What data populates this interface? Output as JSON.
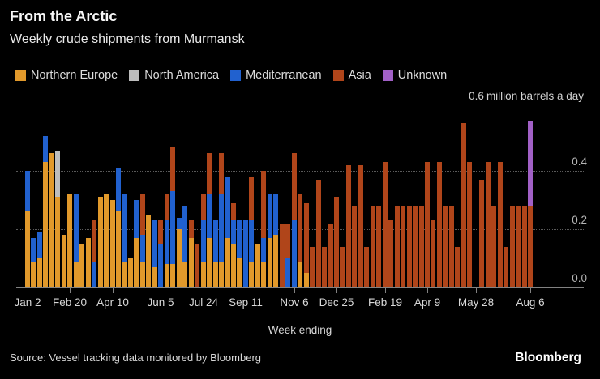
{
  "header": {
    "title": "From the Arctic",
    "subtitle": "Weekly crude shipments from Murmansk"
  },
  "annotation": {
    "value": "0.6",
    "unit": "million barrels a day"
  },
  "footer": {
    "source": "Source: Vessel tracking data monitored by Bloomberg",
    "logo": "Bloomberg"
  },
  "colors": {
    "background": "#000000",
    "northern_europe": "#E1992B",
    "north_america": "#BDBDBD",
    "mediterranean": "#2161CF",
    "asia": "#B0451A",
    "unknown": "#A160C6",
    "gridline": "#5A5A5A",
    "axis": "#828282"
  },
  "chart_data": {
    "type": "bar",
    "stacked": true,
    "title": "From the Arctic",
    "subtitle": "Weekly crude shipments from Murmansk",
    "xlabel": "Week ending",
    "ylabel": "million barrels a day",
    "ylim": [
      0,
      0.6
    ],
    "grid": "horizontal-dotted",
    "legend_position": "top",
    "y_ticks": [
      {
        "label": "0.4",
        "value": 0.4
      },
      {
        "label": "0.2",
        "value": 0.2
      },
      {
        "label": "0.0",
        "value": 0.0
      }
    ],
    "x_ticks": [
      {
        "label": "Jan 2",
        "index": 0
      },
      {
        "label": "Feb 20",
        "index": 7
      },
      {
        "label": "Apr 10",
        "index": 14
      },
      {
        "label": "Jun 5",
        "index": 22
      },
      {
        "label": "Jul 24",
        "index": 29
      },
      {
        "label": "Sep 11",
        "index": 36
      },
      {
        "label": "Nov 6",
        "index": 44
      },
      {
        "label": "Dec 25",
        "index": 51
      },
      {
        "label": "Feb 19",
        "index": 59
      },
      {
        "label": "Apr 9",
        "index": 66
      },
      {
        "label": "May 28",
        "index": 74
      },
      {
        "label": "Aug 6",
        "index": 83
      }
    ],
    "series": [
      {
        "name": "Northern Europe",
        "color": "#E1992B"
      },
      {
        "name": "North America",
        "color": "#BDBDBD"
      },
      {
        "name": "Mediterranean",
        "color": "#2161CF"
      },
      {
        "name": "Asia",
        "color": "#B0451A"
      },
      {
        "name": "Unknown",
        "color": "#A160C6"
      }
    ],
    "bars_note": "each bar = one week; values per series order [Northern Europe, North America, Mediterranean, Asia, Unknown] in million barrels a day",
    "bars": [
      [
        0.26,
        0,
        0.14,
        0,
        0
      ],
      [
        0.09,
        0,
        0.08,
        0,
        0
      ],
      [
        0.1,
        0,
        0.09,
        0,
        0
      ],
      [
        0.43,
        0,
        0.09,
        0,
        0
      ],
      [
        0.46,
        0,
        0,
        0,
        0
      ],
      [
        0.31,
        0.16,
        0,
        0,
        0
      ],
      [
        0.18,
        0,
        0,
        0,
        0
      ],
      [
        0.32,
        0,
        0,
        0,
        0
      ],
      [
        0.09,
        0,
        0.23,
        0,
        0
      ],
      [
        0.15,
        0,
        0,
        0,
        0
      ],
      [
        0.17,
        0,
        0,
        0,
        0
      ],
      [
        0,
        0,
        0.09,
        0.14,
        0
      ],
      [
        0.31,
        0,
        0,
        0,
        0
      ],
      [
        0.32,
        0,
        0,
        0,
        0
      ],
      [
        0.3,
        0,
        0,
        0,
        0
      ],
      [
        0.26,
        0,
        0.15,
        0,
        0
      ],
      [
        0.09,
        0,
        0.23,
        0,
        0
      ],
      [
        0.1,
        0,
        0,
        0,
        0
      ],
      [
        0.17,
        0,
        0.13,
        0,
        0
      ],
      [
        0.09,
        0,
        0.09,
        0.14,
        0
      ],
      [
        0.25,
        0,
        0,
        0,
        0
      ],
      [
        0.07,
        0,
        0.16,
        0,
        0
      ],
      [
        0,
        0,
        0.15,
        0.08,
        0
      ],
      [
        0.08,
        0,
        0.15,
        0.09,
        0
      ],
      [
        0.08,
        0,
        0.25,
        0.15,
        0
      ],
      [
        0.2,
        0,
        0.04,
        0,
        0
      ],
      [
        0.09,
        0,
        0.19,
        0,
        0
      ],
      [
        0.17,
        0,
        0,
        0.06,
        0
      ],
      [
        0,
        0,
        0,
        0.15,
        0
      ],
      [
        0.09,
        0,
        0.14,
        0.09,
        0
      ],
      [
        0.17,
        0,
        0.15,
        0.14,
        0
      ],
      [
        0.09,
        0,
        0.14,
        0,
        0
      ],
      [
        0.09,
        0,
        0.23,
        0.14,
        0
      ],
      [
        0.17,
        0,
        0.21,
        0,
        0
      ],
      [
        0.15,
        0,
        0.08,
        0.06,
        0
      ],
      [
        0.1,
        0,
        0.13,
        0,
        0
      ],
      [
        0,
        0,
        0.23,
        0,
        0
      ],
      [
        0.09,
        0,
        0.14,
        0.15,
        0
      ],
      [
        0.15,
        0,
        0,
        0,
        0
      ],
      [
        0.09,
        0,
        0.08,
        0.23,
        0
      ],
      [
        0.17,
        0,
        0.15,
        0,
        0
      ],
      [
        0.18,
        0,
        0.14,
        0,
        0
      ],
      [
        0,
        0,
        0,
        0.22,
        0
      ],
      [
        0,
        0,
        0.1,
        0.12,
        0
      ],
      [
        0,
        0,
        0.23,
        0.23,
        0
      ],
      [
        0.09,
        0,
        0,
        0.23,
        0
      ],
      [
        0.05,
        0,
        0,
        0.24,
        0
      ],
      [
        0,
        0,
        0,
        0.14,
        0
      ],
      [
        0,
        0,
        0,
        0.37,
        0
      ],
      [
        0,
        0,
        0,
        0.14,
        0
      ],
      [
        0,
        0,
        0,
        0.22,
        0
      ],
      [
        0,
        0,
        0,
        0.31,
        0
      ],
      [
        0,
        0,
        0,
        0.14,
        0
      ],
      [
        0,
        0,
        0,
        0.42,
        0
      ],
      [
        0,
        0,
        0,
        0.28,
        0
      ],
      [
        0,
        0,
        0,
        0.42,
        0
      ],
      [
        0,
        0,
        0,
        0.14,
        0
      ],
      [
        0,
        0,
        0,
        0.28,
        0
      ],
      [
        0,
        0,
        0,
        0.28,
        0
      ],
      [
        0,
        0,
        0,
        0.43,
        0
      ],
      [
        0,
        0,
        0,
        0.23,
        0
      ],
      [
        0,
        0,
        0,
        0.28,
        0
      ],
      [
        0,
        0,
        0,
        0.28,
        0
      ],
      [
        0,
        0,
        0,
        0.28,
        0
      ],
      [
        0,
        0,
        0,
        0.28,
        0
      ],
      [
        0,
        0,
        0,
        0.28,
        0
      ],
      [
        0,
        0,
        0,
        0.43,
        0
      ],
      [
        0,
        0,
        0,
        0.23,
        0
      ],
      [
        0,
        0,
        0,
        0.43,
        0
      ],
      [
        0,
        0,
        0,
        0.28,
        0
      ],
      [
        0,
        0,
        0,
        0.28,
        0
      ],
      [
        0,
        0,
        0,
        0.14,
        0
      ],
      [
        0,
        0,
        0,
        0.565,
        0
      ],
      [
        0,
        0,
        0,
        0.43,
        0
      ],
      [
        0,
        0,
        0,
        0,
        0
      ],
      [
        0,
        0,
        0,
        0.37,
        0
      ],
      [
        0,
        0,
        0,
        0.43,
        0
      ],
      [
        0,
        0,
        0,
        0.28,
        0
      ],
      [
        0,
        0,
        0,
        0.43,
        0
      ],
      [
        0,
        0,
        0,
        0.14,
        0
      ],
      [
        0,
        0,
        0,
        0.28,
        0
      ],
      [
        0,
        0,
        0,
        0.28,
        0
      ],
      [
        0,
        0,
        0,
        0.28,
        0
      ],
      [
        0,
        0,
        0,
        0.28,
        0.29
      ]
    ]
  }
}
